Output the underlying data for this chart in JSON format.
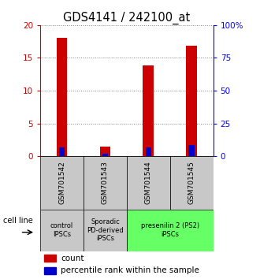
{
  "title": "GDS4141 / 242100_at",
  "samples": [
    "GSM701542",
    "GSM701543",
    "GSM701544",
    "GSM701545"
  ],
  "red_values": [
    18.0,
    1.5,
    13.8,
    16.8
  ],
  "blue_values": [
    6.6,
    1.9,
    6.8,
    8.3
  ],
  "ylim_left": [
    0,
    20
  ],
  "ylim_right": [
    0,
    100
  ],
  "yticks_left": [
    0,
    5,
    10,
    15,
    20
  ],
  "yticks_right": [
    0,
    25,
    50,
    75,
    100
  ],
  "ytick_labels_right": [
    "0",
    "25",
    "50",
    "75",
    "100%"
  ],
  "bar_width": 0.25,
  "red_color": "#cc0000",
  "blue_color": "#0000cc",
  "sample_box_color": "#c8c8c8",
  "group_info": [
    {
      "label": "control\nIPSCs",
      "color": "#c8c8c8",
      "xmin": -0.5,
      "xmax": 0.5
    },
    {
      "label": "Sporadic\nPD-derived\niPSCs",
      "color": "#c8c8c8",
      "xmin": 0.5,
      "xmax": 1.5
    },
    {
      "label": "presenilin 2 (PS2)\niPSCs",
      "color": "#66ff66",
      "xmin": 1.5,
      "xmax": 3.5
    }
  ],
  "cell_line_label": "cell line",
  "legend_count": "count",
  "legend_percentile": "percentile rank within the sample",
  "title_fontsize": 10.5
}
